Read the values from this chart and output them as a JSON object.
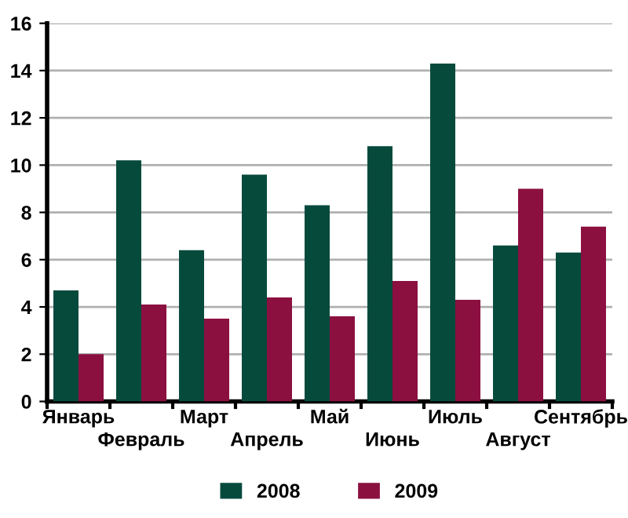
{
  "chart_data": {
    "type": "bar",
    "categories": [
      "Январь",
      "Февраль",
      "Март",
      "Апрель",
      "Май",
      "Июнь",
      "Июль",
      "Август",
      "Сентябрь"
    ],
    "series": [
      {
        "name": "2008",
        "color": "#064a3c",
        "values": [
          4.7,
          10.2,
          6.4,
          9.6,
          8.3,
          10.8,
          14.3,
          6.6,
          6.3
        ]
      },
      {
        "name": "2009",
        "color": "#8b1040",
        "values": [
          2.0,
          4.1,
          3.5,
          4.4,
          3.6,
          5.1,
          4.3,
          9.0,
          7.4
        ]
      }
    ],
    "ylim": [
      0,
      16
    ],
    "yticks": [
      0,
      2,
      4,
      6,
      8,
      10,
      12,
      14,
      16
    ],
    "grid": "y",
    "legend": "bottom"
  }
}
